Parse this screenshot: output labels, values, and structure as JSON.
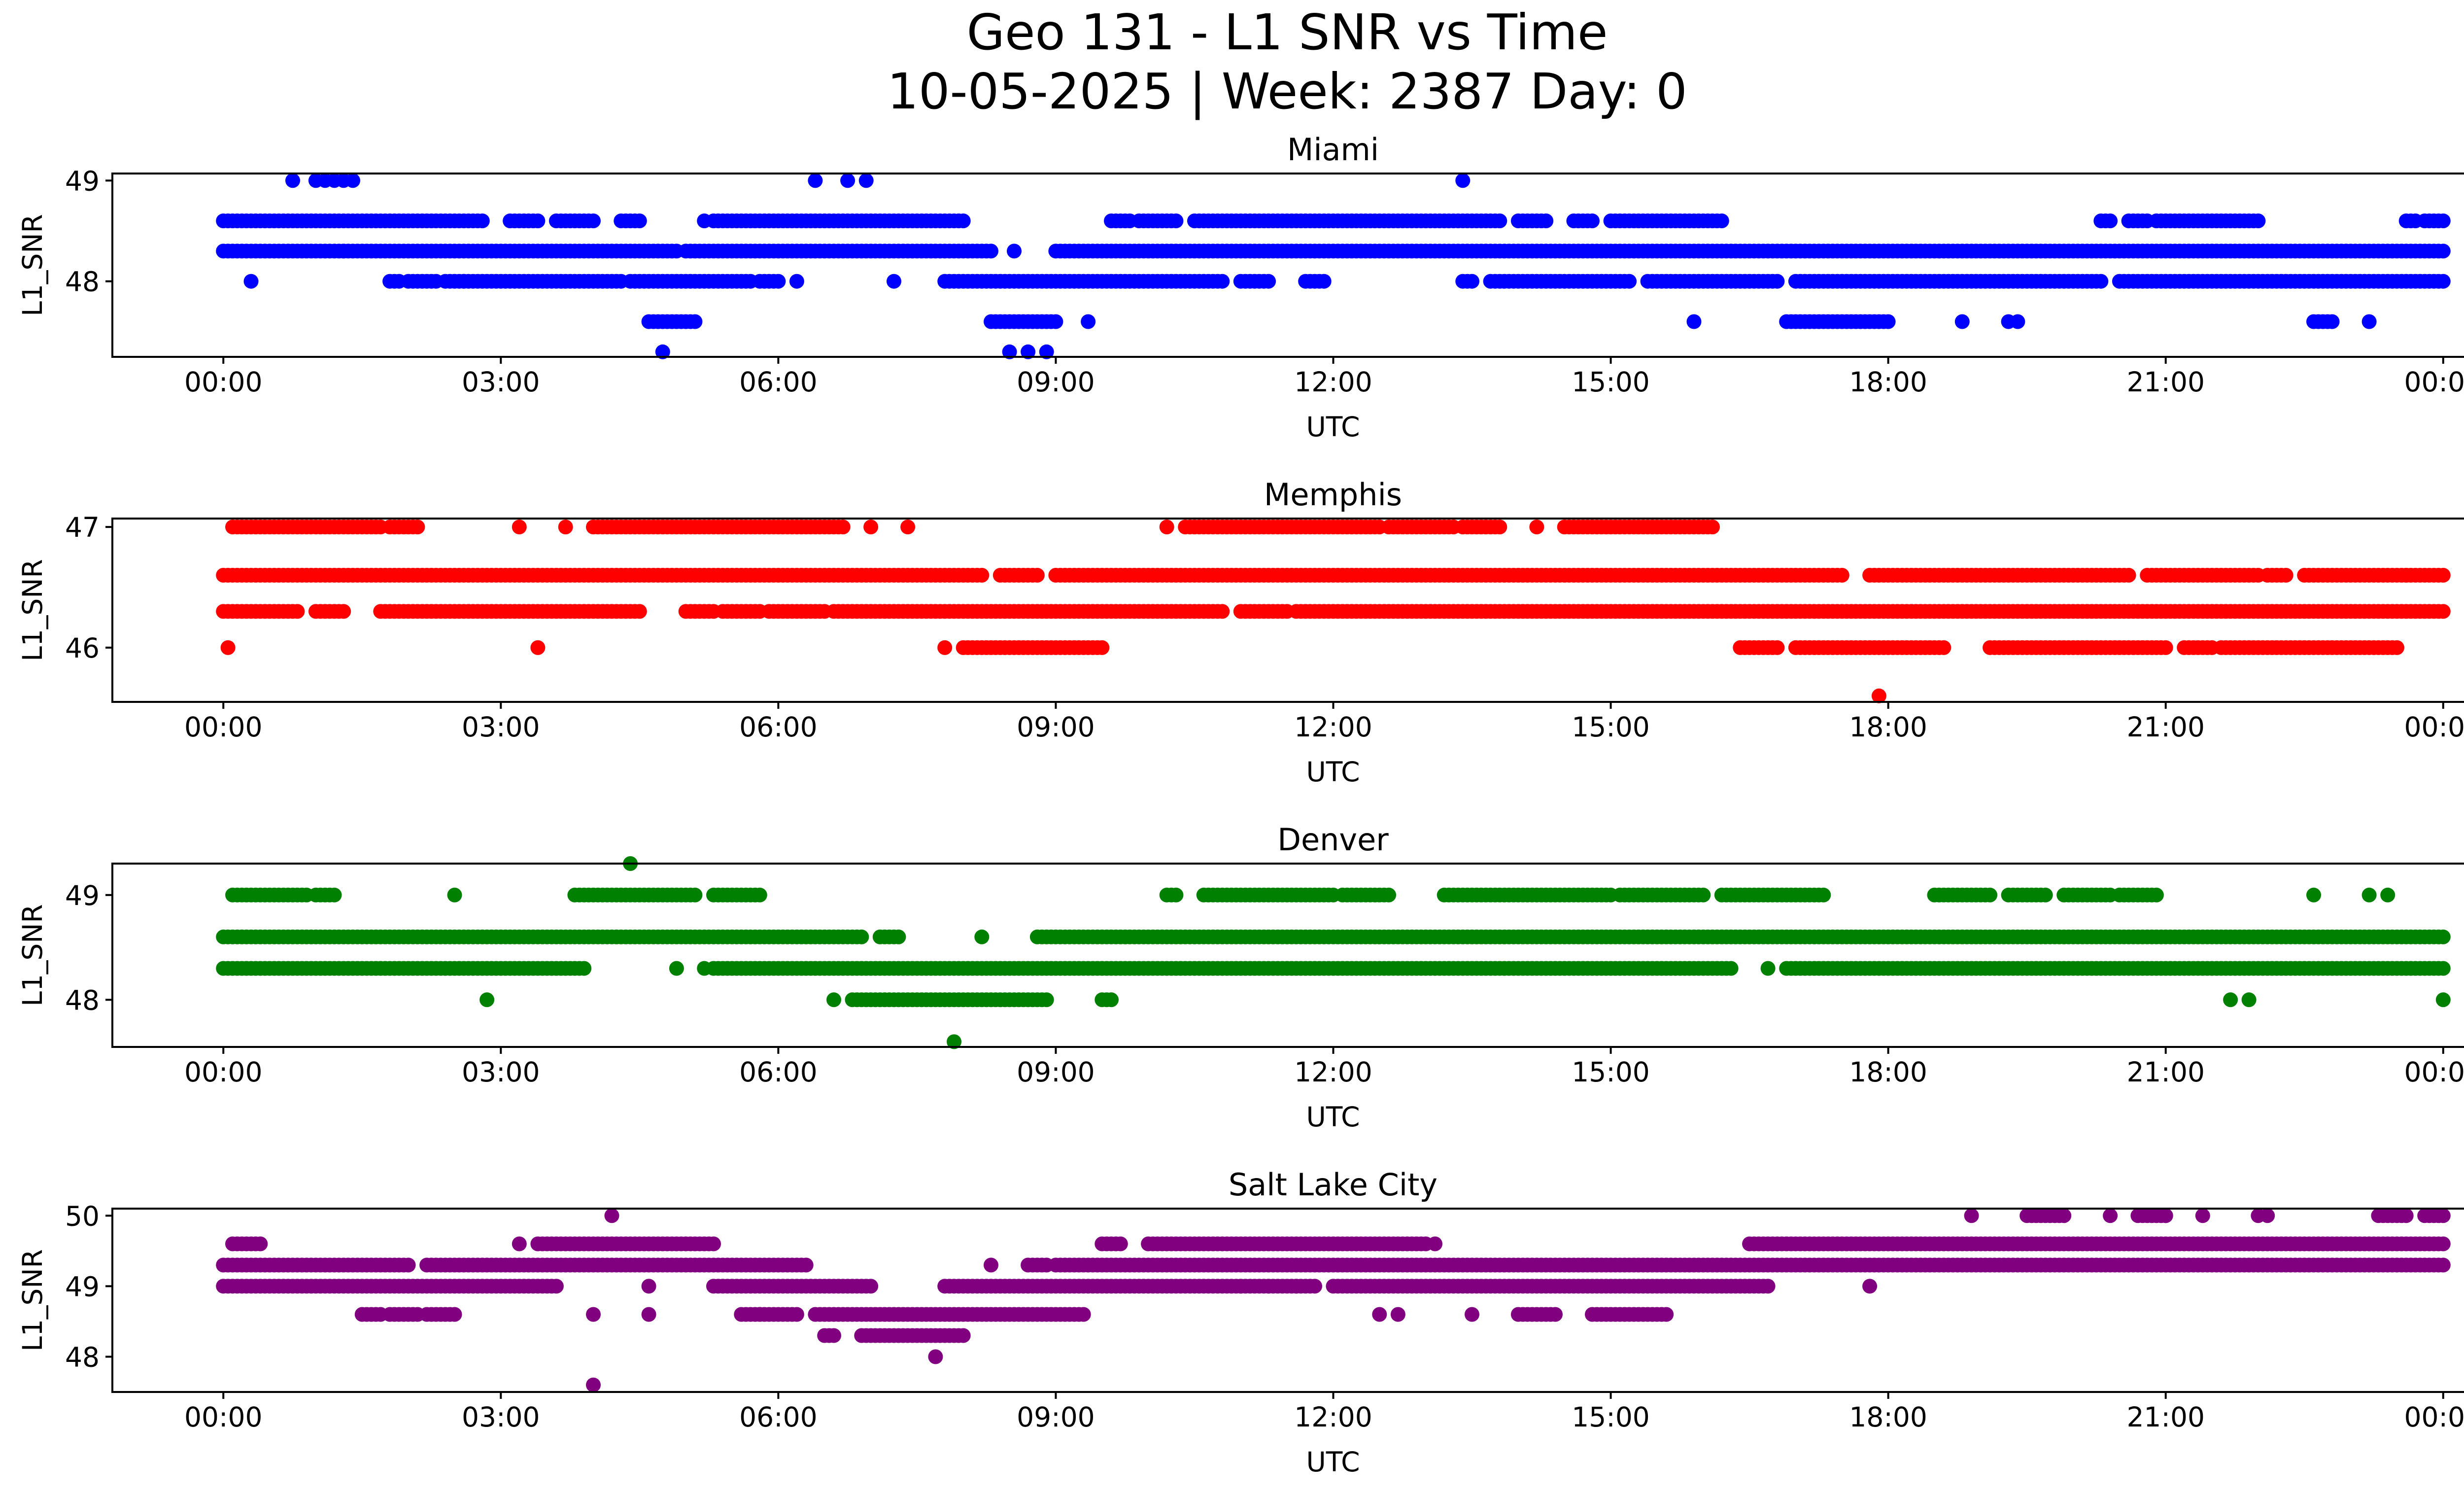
{
  "title_line1": "Geo 131 - L1 SNR vs Time",
  "title_line2": "10-05-2025 | Week: 2387 Day: 0",
  "chart_data": [
    {
      "type": "scatter",
      "title": "Miami",
      "xlabel": "UTC",
      "ylabel": "L1_SNR",
      "color": "#0000ff",
      "x_ticks": [
        "00:00",
        "03:00",
        "06:00",
        "09:00",
        "12:00",
        "15:00",
        "18:00",
        "21:00",
        "00:00"
      ],
      "x_range_hours": [
        -1.2,
        25.2
      ],
      "y_ticks": [
        48,
        49
      ],
      "ylim": [
        47.25,
        49.07
      ],
      "levels": [
        {
          "y": 48.6,
          "runs": [
            [
              0.0,
              2.8
            ],
            [
              3.1,
              3.4
            ],
            [
              3.6,
              4.0
            ],
            [
              4.3,
              4.5
            ],
            [
              5.3,
              8.0
            ],
            [
              9.6,
              9.8
            ],
            [
              9.9,
              10.3
            ],
            [
              10.5,
              13.8
            ],
            [
              14.0,
              14.3
            ],
            [
              14.6,
              14.8
            ],
            [
              15.0,
              16.2
            ],
            [
              20.3,
              20.4
            ],
            [
              20.6,
              20.8
            ],
            [
              20.9,
              22.0
            ],
            [
              23.6,
              23.7
            ],
            [
              23.8,
              24.0
            ]
          ]
        },
        {
          "y": 48.3,
          "runs": [
            [
              0.0,
              1.3
            ],
            [
              1.3,
              4.9
            ],
            [
              5.0,
              8.3
            ],
            [
              9.0,
              24.0
            ]
          ]
        },
        {
          "y": 48.0,
          "runs": [
            [
              1.8,
              1.9
            ],
            [
              2.0,
              2.3
            ],
            [
              2.4,
              2.6
            ],
            [
              2.6,
              4.3
            ],
            [
              4.4,
              5.7
            ],
            [
              5.8,
              6.0
            ],
            [
              7.8,
              10.8
            ],
            [
              11.0,
              11.3
            ],
            [
              11.7,
              11.9
            ],
            [
              13.4,
              13.5
            ],
            [
              13.7,
              15.2
            ],
            [
              15.4,
              16.8
            ],
            [
              17.0,
              20.3
            ],
            [
              20.5,
              24.0
            ]
          ]
        },
        {
          "y": 47.6,
          "runs": [
            [
              4.6,
              5.1
            ],
            [
              8.3,
              9.0
            ],
            [
              16.9,
              18.0
            ],
            [
              22.6,
              22.8
            ]
          ]
        }
      ],
      "points": [
        {
          "x": 0.3,
          "y": 48.0
        },
        {
          "x": 0.75,
          "y": 49.0
        },
        {
          "x": 1.0,
          "y": 49.0
        },
        {
          "x": 1.1,
          "y": 49.0
        },
        {
          "x": 1.2,
          "y": 49.0
        },
        {
          "x": 1.3,
          "y": 49.0
        },
        {
          "x": 1.4,
          "y": 49.0
        },
        {
          "x": 5.2,
          "y": 48.6
        },
        {
          "x": 6.2,
          "y": 48.0
        },
        {
          "x": 6.4,
          "y": 49.0
        },
        {
          "x": 6.75,
          "y": 49.0
        },
        {
          "x": 6.95,
          "y": 49.0
        },
        {
          "x": 7.25,
          "y": 48.0
        },
        {
          "x": 8.55,
          "y": 48.3
        },
        {
          "x": 9.35,
          "y": 47.6
        },
        {
          "x": 13.4,
          "y": 49.0
        },
        {
          "x": 4.75,
          "y": 47.3
        },
        {
          "x": 8.5,
          "y": 47.3
        },
        {
          "x": 8.7,
          "y": 47.3
        },
        {
          "x": 8.9,
          "y": 47.3
        },
        {
          "x": 15.9,
          "y": 47.6
        },
        {
          "x": 18.8,
          "y": 47.6
        },
        {
          "x": 19.3,
          "y": 47.6
        },
        {
          "x": 19.4,
          "y": 47.6
        },
        {
          "x": 23.2,
          "y": 47.6
        }
      ]
    },
    {
      "type": "scatter",
      "title": "Memphis",
      "xlabel": "UTC",
      "ylabel": "L1_SNR",
      "color": "#ff0000",
      "x_ticks": [
        "00:00",
        "03:00",
        "06:00",
        "09:00",
        "12:00",
        "15:00",
        "18:00",
        "21:00",
        "00:00"
      ],
      "x_range_hours": [
        -1.2,
        25.2
      ],
      "y_ticks": [
        46,
        47
      ],
      "ylim": [
        45.55,
        47.07
      ],
      "levels": [
        {
          "y": 47.0,
          "runs": [
            [
              0.1,
              1.7
            ],
            [
              1.8,
              2.1
            ],
            [
              4.0,
              6.7
            ],
            [
              10.4,
              12.5
            ],
            [
              12.6,
              13.3
            ],
            [
              13.4,
              13.8
            ],
            [
              14.5,
              16.1
            ]
          ]
        },
        {
          "y": 46.6,
          "runs": [
            [
              0.0,
              8.2
            ],
            [
              8.4,
              8.8
            ],
            [
              9.0,
              17.5
            ],
            [
              17.8,
              20.6
            ],
            [
              20.8,
              22.0
            ],
            [
              22.1,
              22.3
            ],
            [
              22.5,
              23.6
            ],
            [
              23.6,
              24.0
            ]
          ]
        },
        {
          "y": 46.3,
          "runs": [
            [
              0.0,
              0.8
            ],
            [
              1.0,
              1.3
            ],
            [
              1.7,
              4.5
            ],
            [
              5.0,
              5.3
            ],
            [
              5.4,
              5.8
            ],
            [
              5.9,
              6.5
            ],
            [
              6.6,
              10.8
            ],
            [
              11.0,
              11.5
            ],
            [
              11.6,
              24.0
            ]
          ]
        },
        {
          "y": 46.0,
          "runs": [
            [
              8.0,
              9.5
            ],
            [
              16.4,
              16.8
            ],
            [
              17.0,
              18.6
            ],
            [
              19.1,
              21.0
            ],
            [
              21.2,
              21.5
            ],
            [
              21.6,
              23.5
            ]
          ]
        }
      ],
      "points": [
        {
          "x": 0.05,
          "y": 46.0
        },
        {
          "x": 3.4,
          "y": 46.0
        },
        {
          "x": 3.2,
          "y": 47.0
        },
        {
          "x": 3.7,
          "y": 47.0
        },
        {
          "x": 7.0,
          "y": 47.0
        },
        {
          "x": 7.4,
          "y": 47.0
        },
        {
          "x": 10.2,
          "y": 47.0
        },
        {
          "x": 14.2,
          "y": 47.0
        },
        {
          "x": 7.8,
          "y": 46.0
        },
        {
          "x": 17.9,
          "y": 45.6
        }
      ]
    },
    {
      "type": "scatter",
      "title": "Denver",
      "xlabel": "UTC",
      "ylabel": "L1_SNR",
      "color": "#008000",
      "x_ticks": [
        "00:00",
        "03:00",
        "06:00",
        "09:00",
        "12:00",
        "15:00",
        "18:00",
        "21:00",
        "00:00"
      ],
      "x_range_hours": [
        -1.2,
        25.2
      ],
      "y_ticks": [
        48,
        49
      ],
      "ylim": [
        47.55,
        49.3
      ],
      "levels": [
        {
          "y": 49.0,
          "runs": [
            [
              0.1,
              0.9
            ],
            [
              1.0,
              1.2
            ],
            [
              3.8,
              5.1
            ],
            [
              5.3,
              5.8
            ],
            [
              10.2,
              10.3
            ],
            [
              10.6,
              12.0
            ],
            [
              12.1,
              12.6
            ],
            [
              13.2,
              15.0
            ],
            [
              15.1,
              16.0
            ],
            [
              16.2,
              17.3
            ],
            [
              18.5,
              19.1
            ],
            [
              19.3,
              19.7
            ],
            [
              19.9,
              20.4
            ],
            [
              20.5,
              20.9
            ]
          ]
        },
        {
          "y": 48.6,
          "runs": [
            [
              0.0,
              6.9
            ],
            [
              7.1,
              7.3
            ],
            [
              8.8,
              24.0
            ]
          ]
        },
        {
          "y": 48.3,
          "runs": [
            [
              0.0,
              3.9
            ],
            [
              5.3,
              16.3
            ],
            [
              16.9,
              24.0
            ]
          ]
        },
        {
          "y": 48.0,
          "runs": [
            [
              6.8,
              8.9
            ],
            [
              9.5,
              9.6
            ]
          ]
        }
      ],
      "points": [
        {
          "x": 2.5,
          "y": 49.0
        },
        {
          "x": 2.85,
          "y": 48.0
        },
        {
          "x": 4.4,
          "y": 49.3
        },
        {
          "x": 4.9,
          "y": 48.3
        },
        {
          "x": 5.2,
          "y": 48.3
        },
        {
          "x": 6.6,
          "y": 48.0
        },
        {
          "x": 7.9,
          "y": 47.6
        },
        {
          "x": 8.2,
          "y": 48.6
        },
        {
          "x": 16.7,
          "y": 48.3
        },
        {
          "x": 21.7,
          "y": 48.0
        },
        {
          "x": 21.9,
          "y": 48.0
        },
        {
          "x": 22.6,
          "y": 49.0
        },
        {
          "x": 23.2,
          "y": 49.0
        },
        {
          "x": 23.4,
          "y": 49.0
        },
        {
          "x": 24.0,
          "y": 48.0
        }
      ]
    },
    {
      "type": "scatter",
      "title": "Salt Lake City",
      "xlabel": "UTC",
      "ylabel": "L1_SNR",
      "color": "#800080",
      "x_ticks": [
        "00:00",
        "03:00",
        "06:00",
        "09:00",
        "12:00",
        "15:00",
        "18:00",
        "21:00",
        "00:00"
      ],
      "x_range_hours": [
        -1.2,
        25.2
      ],
      "y_ticks": [
        48,
        49,
        50
      ],
      "ylim": [
        47.5,
        50.1
      ],
      "levels": [
        {
          "y": 50.0,
          "runs": [
            [
              19.5,
              19.9
            ],
            [
              20.7,
              21.0
            ],
            [
              23.3,
              23.6
            ],
            [
              23.8,
              24.0
            ]
          ]
        },
        {
          "y": 49.6,
          "runs": [
            [
              0.1,
              0.4
            ],
            [
              3.4,
              5.3
            ],
            [
              9.5,
              9.7
            ],
            [
              10.0,
              13.0
            ],
            [
              16.5,
              24.0
            ]
          ]
        },
        {
          "y": 49.3,
          "runs": [
            [
              0.0,
              2.0
            ],
            [
              2.2,
              6.3
            ],
            [
              8.7,
              8.9
            ],
            [
              9.0,
              24.0
            ]
          ]
        },
        {
          "y": 49.0,
          "runs": [
            [
              0.0,
              3.6
            ],
            [
              5.3,
              7.0
            ],
            [
              7.8,
              11.8
            ],
            [
              12.0,
              16.7
            ]
          ]
        },
        {
          "y": 48.6,
          "runs": [
            [
              1.5,
              1.7
            ],
            [
              1.8,
              2.1
            ],
            [
              2.2,
              2.5
            ],
            [
              5.6,
              6.2
            ],
            [
              6.4,
              9.3
            ],
            [
              14.0,
              14.4
            ],
            [
              14.8,
              15.6
            ]
          ]
        },
        {
          "y": 48.3,
          "runs": [
            [
              6.5,
              6.6
            ],
            [
              6.9,
              8.0
            ]
          ]
        }
      ],
      "points": [
        {
          "x": 4.2,
          "y": 50.0
        },
        {
          "x": 18.9,
          "y": 50.0
        },
        {
          "x": 20.4,
          "y": 50.0
        },
        {
          "x": 21.0,
          "y": 50.0
        },
        {
          "x": 21.4,
          "y": 50.0
        },
        {
          "x": 22.0,
          "y": 50.0
        },
        {
          "x": 22.1,
          "y": 50.0
        },
        {
          "x": 3.2,
          "y": 49.6
        },
        {
          "x": 13.1,
          "y": 49.6
        },
        {
          "x": 4.0,
          "y": 48.6
        },
        {
          "x": 4.6,
          "y": 48.6
        },
        {
          "x": 4.6,
          "y": 49.0
        },
        {
          "x": 5.8,
          "y": 48.6
        },
        {
          "x": 8.3,
          "y": 49.3
        },
        {
          "x": 11.0,
          "y": 49.0
        },
        {
          "x": 11.3,
          "y": 49.0
        },
        {
          "x": 11.6,
          "y": 49.0
        },
        {
          "x": 12.5,
          "y": 48.6
        },
        {
          "x": 12.7,
          "y": 48.6
        },
        {
          "x": 13.5,
          "y": 48.6
        },
        {
          "x": 17.8,
          "y": 49.0
        },
        {
          "x": 7.7,
          "y": 48.0
        },
        {
          "x": 4.0,
          "y": 47.6
        }
      ]
    }
  ]
}
